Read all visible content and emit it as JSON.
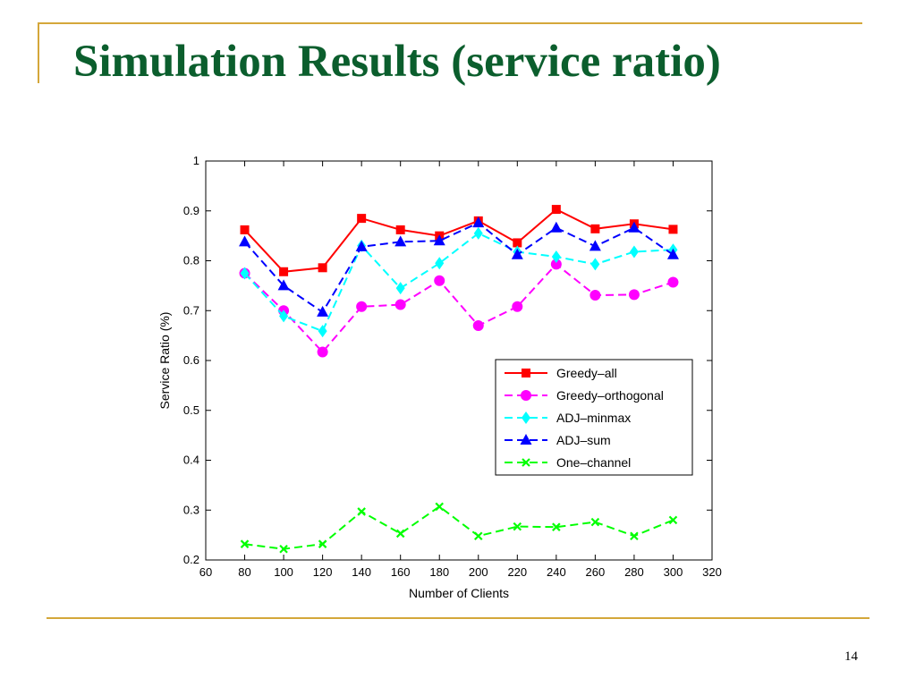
{
  "slide": {
    "title": "Simulation Results (service ratio)",
    "page_number": "14"
  },
  "colors": {
    "title": "#0b5e2d",
    "rule": "#d4a73a"
  },
  "chart_data": {
    "type": "line",
    "title": "",
    "xlabel": "Number of Clients",
    "ylabel": "Service Ratio (%)",
    "xlim": [
      60,
      320
    ],
    "ylim": [
      0.2,
      1.0
    ],
    "xticks": [
      60,
      80,
      100,
      120,
      140,
      160,
      180,
      200,
      220,
      240,
      260,
      280,
      300,
      320
    ],
    "yticks": [
      0.2,
      0.3,
      0.4,
      0.5,
      0.6,
      0.7,
      0.8,
      0.9,
      1
    ],
    "grid": false,
    "legend_position": "center-right",
    "x": [
      80,
      100,
      120,
      140,
      160,
      180,
      200,
      220,
      240,
      260,
      280,
      300
    ],
    "series": [
      {
        "name": "Greedy–all",
        "color": "#ff0000",
        "dash": "solid",
        "marker": "square",
        "values": [
          0.862,
          0.778,
          0.786,
          0.885,
          0.862,
          0.85,
          0.88,
          0.836,
          0.903,
          0.864,
          0.874,
          0.863
        ]
      },
      {
        "name": "Greedy–orthogonal",
        "color": "#ff00ff",
        "dash": "dashed",
        "marker": "circle",
        "values": [
          0.775,
          0.7,
          0.617,
          0.708,
          0.712,
          0.76,
          0.67,
          0.708,
          0.793,
          0.731,
          0.732,
          0.757
        ]
      },
      {
        "name": "ADJ–minmax",
        "color": "#00ffff",
        "dash": "dashed",
        "marker": "diamond",
        "values": [
          0.775,
          0.689,
          0.659,
          0.83,
          0.745,
          0.795,
          0.855,
          0.818,
          0.808,
          0.793,
          0.818,
          0.822
        ]
      },
      {
        "name": "ADJ–sum",
        "color": "#0000ff",
        "dash": "dashed",
        "marker": "triangle",
        "values": [
          0.838,
          0.75,
          0.697,
          0.828,
          0.838,
          0.84,
          0.876,
          0.812,
          0.866,
          0.829,
          0.866,
          0.812
        ]
      },
      {
        "name": "One–channel",
        "color": "#00ff00",
        "dash": "dashed",
        "marker": "x",
        "values": [
          0.232,
          0.222,
          0.232,
          0.297,
          0.253,
          0.307,
          0.248,
          0.267,
          0.266,
          0.276,
          0.248,
          0.28
        ]
      }
    ]
  }
}
